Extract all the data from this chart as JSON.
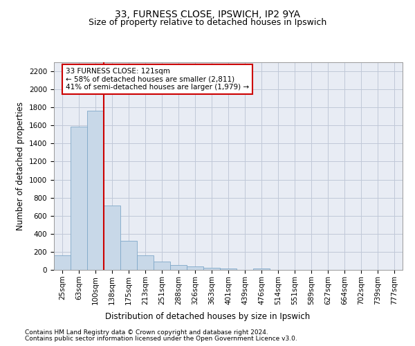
{
  "title1": "33, FURNESS CLOSE, IPSWICH, IP2 9YA",
  "title2": "Size of property relative to detached houses in Ipswich",
  "xlabel": "Distribution of detached houses by size in Ipswich",
  "ylabel": "Number of detached properties",
  "footer1": "Contains HM Land Registry data © Crown copyright and database right 2024.",
  "footer2": "Contains public sector information licensed under the Open Government Licence v3.0.",
  "categories": [
    "25sqm",
    "63sqm",
    "100sqm",
    "138sqm",
    "175sqm",
    "213sqm",
    "251sqm",
    "288sqm",
    "326sqm",
    "363sqm",
    "401sqm",
    "439sqm",
    "476sqm",
    "514sqm",
    "551sqm",
    "589sqm",
    "627sqm",
    "664sqm",
    "702sqm",
    "739sqm",
    "777sqm"
  ],
  "values": [
    160,
    1590,
    1760,
    710,
    320,
    160,
    90,
    55,
    35,
    25,
    15,
    0,
    15,
    0,
    0,
    0,
    0,
    0,
    0,
    0,
    0
  ],
  "bar_color": "#c8d8e8",
  "bar_edge_color": "#7fa8c8",
  "property_line_x": 2.5,
  "annotation_text": "33 FURNESS CLOSE: 121sqm\n← 58% of detached houses are smaller (2,811)\n41% of semi-detached houses are larger (1,979) →",
  "vline_color": "#cc0000",
  "annotation_box_color": "#cc0000",
  "ylim": [
    0,
    2300
  ],
  "yticks": [
    0,
    200,
    400,
    600,
    800,
    1000,
    1200,
    1400,
    1600,
    1800,
    2000,
    2200
  ],
  "grid_color": "#c0c8d8",
  "bg_color": "#e8ecf4",
  "title1_fontsize": 10,
  "title2_fontsize": 9,
  "xlabel_fontsize": 8.5,
  "ylabel_fontsize": 8.5,
  "tick_fontsize": 7.5,
  "footer_fontsize": 6.5,
  "annotation_fontsize": 7.5
}
